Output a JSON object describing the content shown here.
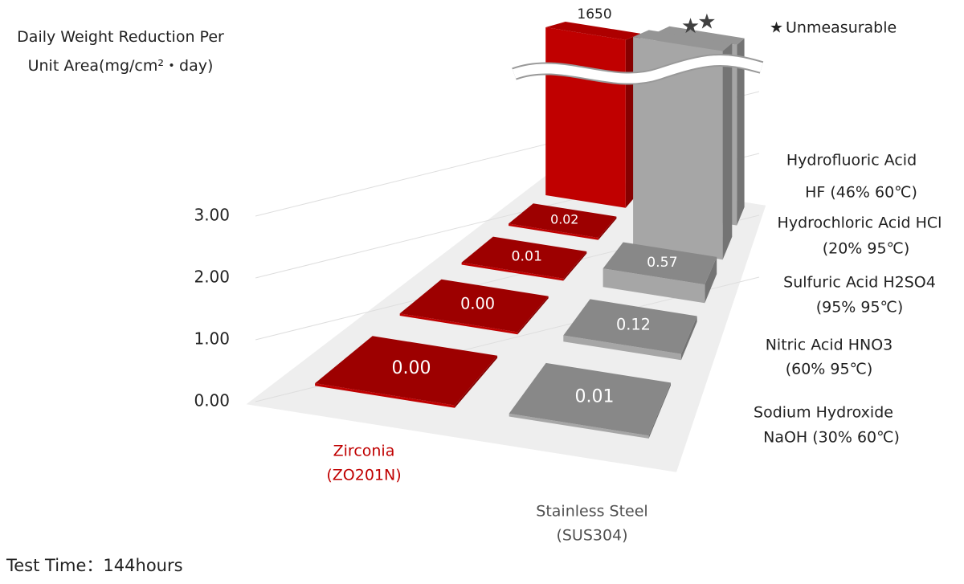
{
  "chart_data": {
    "type": "bar3d",
    "title": "Daily Weight Reduction Per Unit Area(mg/cm²・day)",
    "categories": [
      "Sodium Hydroxide",
      "Nitric Acid HNO3",
      "Sulfuric Acid H2SO4",
      "Hydrochloric Acid HCl",
      "Hydrofluoric Acid"
    ],
    "category_details": [
      "NaOH (30% 60℃)",
      "(60% 95℃)",
      "(95% 95℃)",
      "(20% 95℃)",
      "HF (46% 60℃)"
    ],
    "series": [
      {
        "name": "Zirconia",
        "grade": "(ZO201N)",
        "color": "#c00000",
        "values": [
          0,
          0,
          0.01,
          0.02,
          1650
        ],
        "value_labels": [
          "0.00",
          "0.00",
          "0.01",
          "0.02",
          "1650"
        ]
      },
      {
        "name": "Stainless Steel",
        "grade": "(SUS304)",
        "color": "#a6a6a6",
        "values": [
          0.01,
          0.12,
          0.57,
          null,
          null
        ],
        "value_labels": [
          "0.01",
          "0.12",
          "0.57",
          null,
          null
        ]
      }
    ],
    "ylim": [
      0,
      3
    ],
    "yticks": [
      {
        "value": 0,
        "label": "0.00"
      },
      {
        "value": 1,
        "label": "1.00"
      },
      {
        "value": 2,
        "label": "2.00"
      },
      {
        "value": 3,
        "label": "3.00"
      }
    ],
    "note": {
      "symbol": "★",
      "text": "Unmeasurable"
    },
    "footnote": "Test Time：144hours"
  }
}
